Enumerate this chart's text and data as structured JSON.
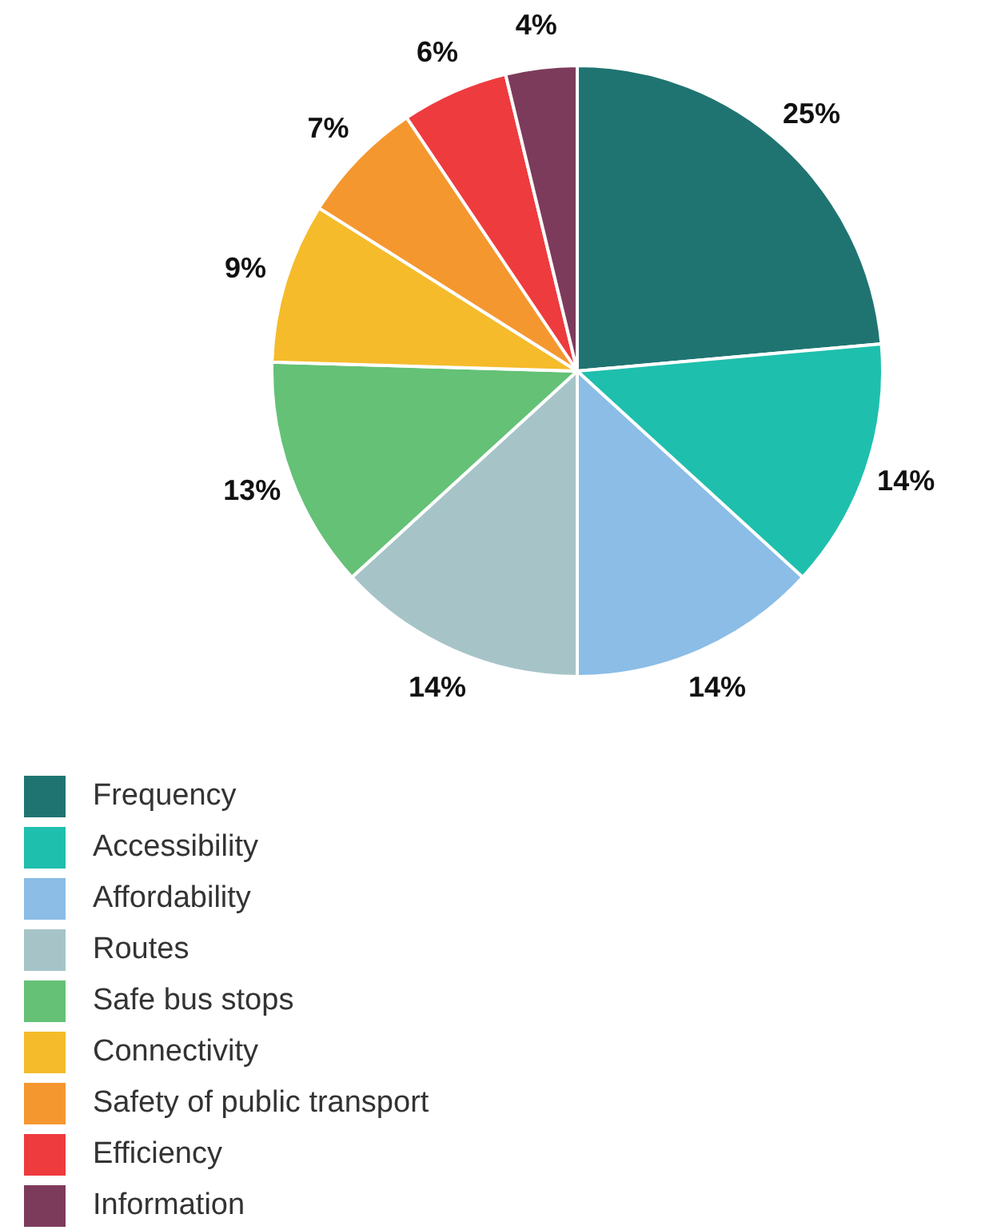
{
  "chart_data": {
    "type": "pie",
    "categories": [
      "Frequency",
      "Accessibility",
      "Affordability",
      "Routes",
      "Safe bus stops",
      "Connectivity",
      "Safety of public transport",
      "Efficiency",
      "Information"
    ],
    "values": [
      25,
      14,
      14,
      14,
      13,
      9,
      7,
      6,
      4
    ],
    "value_labels": [
      "25%",
      "14%",
      "14%",
      "14%",
      "13%",
      "9%",
      "7%",
      "6%",
      "4%"
    ],
    "colors": [
      "#1f7471",
      "#1fbfad",
      "#8bbde6",
      "#a6c4c7",
      "#64c176",
      "#f5bb2b",
      "#f5972f",
      "#ee3b3e",
      "#7d3b5b"
    ],
    "legend": "bottom"
  }
}
